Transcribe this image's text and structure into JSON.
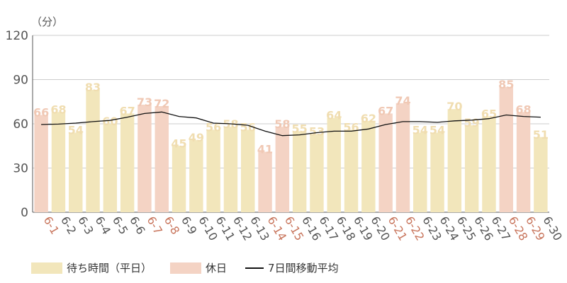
{
  "colors": {
    "weekday": "#f2e6bb",
    "holiday": "#f4d3c4",
    "bar_label_weekday": "#f0ddb0",
    "bar_label_holiday": "#f0c8b4",
    "tick_holiday": "#c8755c",
    "tick_weekday": "#555555",
    "moving_average": "#111111",
    "axis": "#555555",
    "grid": "#cccccc"
  },
  "legend": {
    "weekday": "待ち時間（平日）",
    "holiday": "休日",
    "moving_average": "7日間移動平均"
  },
  "chart_data": {
    "type": "bar",
    "unit_label": "（分）",
    "ylim": [
      0,
      120
    ],
    "yticks": [
      0,
      30,
      60,
      90,
      120
    ],
    "grid": true,
    "legend_position": "bottom-left",
    "categories": [
      "6-1",
      "6-2",
      "6-3",
      "6-4",
      "6-5",
      "6-6",
      "6-7",
      "6-8",
      "6-9",
      "6-10",
      "6-11",
      "6-12",
      "6-13",
      "6-14",
      "6-15",
      "6-16",
      "6-17",
      "6-18",
      "6-19",
      "6-20",
      "6-21",
      "6-22",
      "6-23",
      "6-24",
      "6-25",
      "6-26",
      "6-27",
      "6-28",
      "6-29",
      "6-30"
    ],
    "values": [
      66,
      68,
      54,
      83,
      60,
      67,
      73,
      72,
      45,
      49,
      56,
      58,
      56,
      41,
      58,
      55,
      53,
      64,
      56,
      62,
      67,
      74,
      54,
      54,
      70,
      59,
      65,
      85,
      68,
      51
    ],
    "holiday": [
      true,
      false,
      false,
      false,
      false,
      false,
      true,
      true,
      false,
      false,
      false,
      false,
      false,
      true,
      true,
      false,
      false,
      false,
      false,
      false,
      true,
      true,
      false,
      false,
      false,
      false,
      false,
      true,
      true,
      false
    ],
    "moving_average": [
      59.5,
      59.8,
      60.5,
      61.5,
      62.3,
      64.5,
      67.0,
      68.0,
      65.0,
      64.0,
      60.5,
      60.0,
      59.0,
      55.0,
      52.0,
      52.5,
      54.0,
      55.0,
      55.0,
      56.5,
      59.5,
      61.5,
      61.5,
      61.0,
      62.0,
      62.5,
      63.5,
      66.0,
      65.0,
      64.5
    ]
  }
}
